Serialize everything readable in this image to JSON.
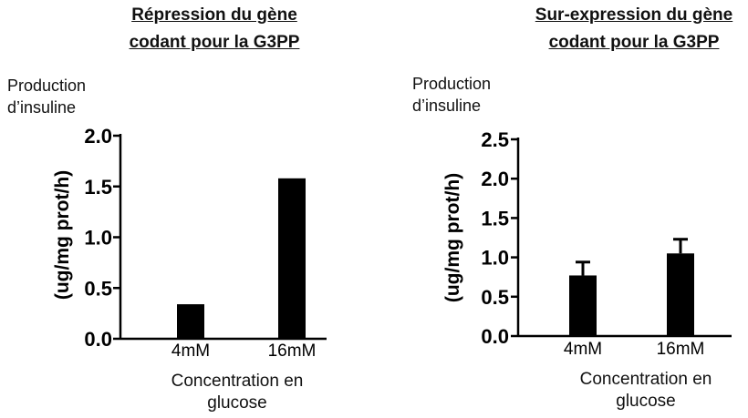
{
  "chart_data": [
    {
      "type": "bar",
      "title": [
        "Répression du gène",
        "codant pour la G3PP"
      ],
      "top_label": [
        "Production",
        "d’insuline"
      ],
      "ylabel": "(ug/mg prot/h)",
      "xlabel": [
        "Concentration en",
        "glucose"
      ],
      "categories": [
        "4mM",
        "16mM"
      ],
      "values": [
        0.34,
        1.58
      ],
      "errors": [
        0.01,
        0.02
      ],
      "ylim": [
        0,
        2.0
      ],
      "yticks": [
        "0.0",
        "0.5",
        "1.0",
        "1.5",
        "2.0"
      ],
      "ytick_values": [
        0,
        0.5,
        1.0,
        1.5,
        2.0
      ],
      "grid": false,
      "bar_color": "#000000"
    },
    {
      "type": "bar",
      "title": [
        "Sur-expression du gène",
        "codant pour la G3PP"
      ],
      "top_label": [
        "Production",
        "d’insuline"
      ],
      "ylabel": "(ug/mg prot/h)",
      "xlabel": [
        "Concentration en",
        "glucose"
      ],
      "categories": [
        "4mM",
        "16mM"
      ],
      "values": [
        0.77,
        1.05
      ],
      "errors": [
        0.17,
        0.18
      ],
      "ylim": [
        0,
        2.5
      ],
      "yticks": [
        "0.0",
        "0.5",
        "1.0",
        "1.5",
        "2.0",
        "2.5"
      ],
      "ytick_values": [
        0,
        0.5,
        1.0,
        1.5,
        2.0,
        2.5
      ],
      "grid": false,
      "bar_color": "#000000"
    }
  ]
}
